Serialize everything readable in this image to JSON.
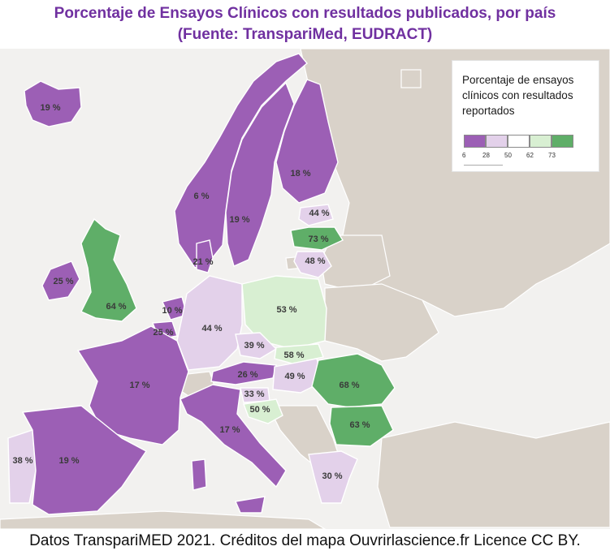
{
  "title_line1": "Porcentaje de Ensayos Clínicos con resultados publicados, por país",
  "title_line2": "(Fuente: TranspariMed, EUDRACT)",
  "legend": {
    "title": "Porcentaje de ensayos clínicos con resultados reportados",
    "ticks": [
      "6",
      "28",
      "50",
      "62",
      "73"
    ],
    "colors": [
      "#9c5fb5",
      "#e3d1ea",
      "#ffffff",
      "#d8efd2",
      "#5fae68"
    ]
  },
  "colors": {
    "purple": "#9c5fb5",
    "light_purple": "#e3d1ea",
    "light_green": "#d8efd2",
    "green": "#5fae68",
    "no_data": "#d9d2c9",
    "sea": "#f2f1ef",
    "title": "#7030a0"
  },
  "countries": [
    {
      "name": "Iceland",
      "value_label": "19 %",
      "value": 19
    },
    {
      "name": "Norway",
      "value_label": "6 %",
      "value": 6
    },
    {
      "name": "Sweden",
      "value_label": "19 %",
      "value": 19
    },
    {
      "name": "Finland",
      "value_label": "18 %",
      "value": 18
    },
    {
      "name": "Estonia",
      "value_label": "44 %",
      "value": 44
    },
    {
      "name": "Latvia",
      "value_label": "73 %",
      "value": 73
    },
    {
      "name": "Lithuania",
      "value_label": "48 %",
      "value": 48
    },
    {
      "name": "Denmark",
      "value_label": "21 %",
      "value": 21
    },
    {
      "name": "Ireland",
      "value_label": "25 %",
      "value": 25
    },
    {
      "name": "United Kingdom",
      "value_label": "64 %",
      "value": 64
    },
    {
      "name": "Netherlands",
      "value_label": "10 %",
      "value": 10
    },
    {
      "name": "Belgium",
      "value_label": "25 %",
      "value": 25
    },
    {
      "name": "Germany",
      "value_label": "44 %",
      "value": 44
    },
    {
      "name": "Poland",
      "value_label": "53 %",
      "value": 53
    },
    {
      "name": "Czechia",
      "value_label": "39 %",
      "value": 39
    },
    {
      "name": "Slovakia",
      "value_label": "58 %",
      "value": 58
    },
    {
      "name": "Austria",
      "value_label": "26 %",
      "value": 26
    },
    {
      "name": "Hungary",
      "value_label": "49 %",
      "value": 49
    },
    {
      "name": "Romania",
      "value_label": "68 %",
      "value": 68
    },
    {
      "name": "France",
      "value_label": "17 %",
      "value": 17
    },
    {
      "name": "Slovenia",
      "value_label": "33 %",
      "value": 33
    },
    {
      "name": "Croatia",
      "value_label": "50 %",
      "value": 50
    },
    {
      "name": "Italy",
      "value_label": "17 %",
      "value": 17
    },
    {
      "name": "Bulgaria",
      "value_label": "63 %",
      "value": 63
    },
    {
      "name": "Portugal",
      "value_label": "38 %",
      "value": 38
    },
    {
      "name": "Spain",
      "value_label": "19 %",
      "value": 19
    },
    {
      "name": "Greece",
      "value_label": "30 %",
      "value": 30
    }
  ],
  "credit": "Datos TranspariMED 2021. Créditos del mapa Ouvrirlascience.fr Licence CC BY."
}
